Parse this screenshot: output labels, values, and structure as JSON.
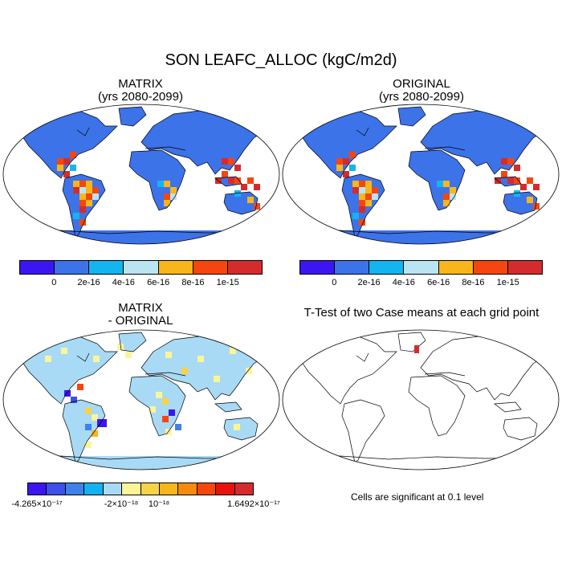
{
  "title": "SON LEAFC_ALLOC (kgC/m2d)",
  "panels": {
    "matrix": {
      "title_line1": "MATRIX",
      "title_line2": "(yrs 2080-2099)"
    },
    "original": {
      "title_line1": "ORIGINAL",
      "title_line2": "(yrs 2080-2099)"
    },
    "diff": {
      "title_line1": "MATRIX",
      "title_line2": "- ORIGINAL"
    },
    "ttest": {
      "title": "T-Test of two Case means at each grid point",
      "note": "Cells are significant at 0.1 level"
    }
  },
  "colorbars": {
    "main": {
      "colors": [
        "#3b16f0",
        "#3d73e8",
        "#14b4f0",
        "#b9e4f2",
        "#f8b61c",
        "#f5460f",
        "#d42c2c"
      ],
      "labels": [
        "0",
        "2e-16",
        "4e-16",
        "6e-16",
        "8e-16",
        "1e-15"
      ]
    },
    "diff": {
      "colors": [
        "#3b16f0",
        "#3d50e8",
        "#3d82e8",
        "#16b0f0",
        "#a8daf5",
        "#fbf59a",
        "#f7d34a",
        "#f8b61c",
        "#f58a0f",
        "#f5460f",
        "#e8120c",
        "#d42c2c"
      ],
      "labels": [
        "-4.265×10⁻¹⁷",
        "-2×10⁻¹⁸",
        "10⁻¹⁸",
        "1.6492×10⁻¹⁷"
      ]
    }
  }
}
